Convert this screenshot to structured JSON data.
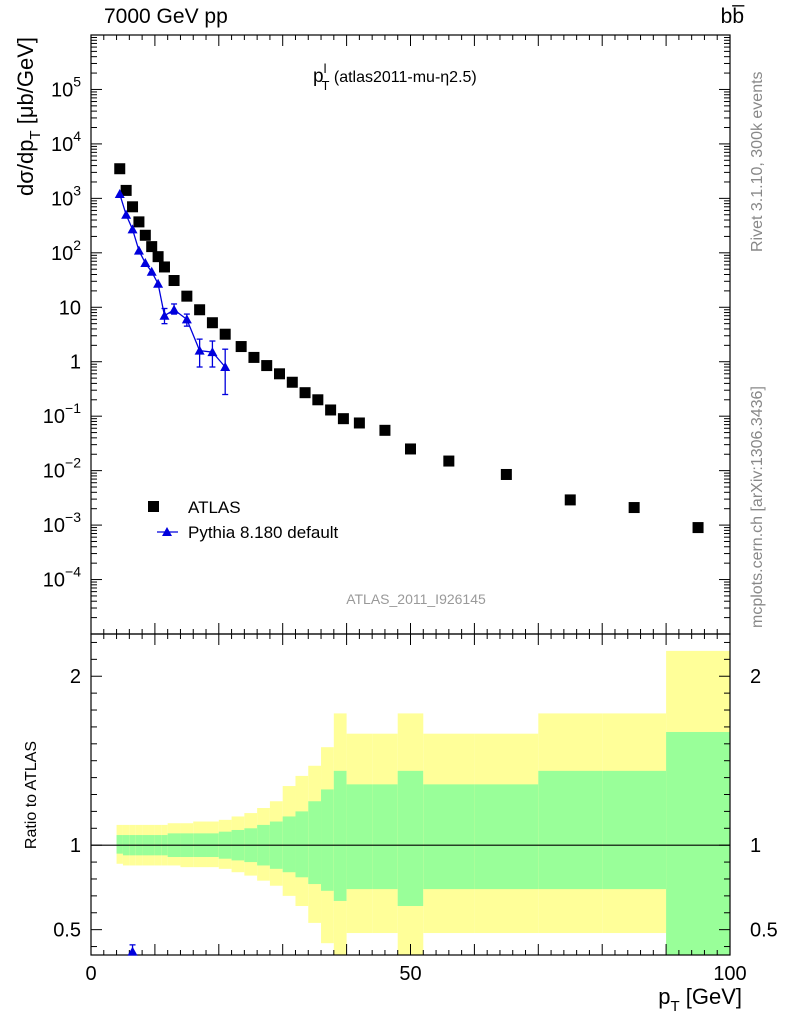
{
  "header": {
    "left": "7000 GeV pp",
    "right": "bb̅"
  },
  "side_labels": {
    "rivet": "Rivet 3.1.10,  300k events",
    "source": "mcplots.cern.ch [arXiv:1306.3436]"
  },
  "chart_data": {
    "type": "scatter",
    "title": "p_T^l (atlas2011-mu-η2.5)",
    "title_parts": {
      "main": "p",
      "sup": "l",
      "sub": "T",
      "rest": "(atlas2011-mu-η2.5)"
    },
    "watermark": "ATLAS_2011_I926145",
    "xlabel": "p_T [GeV]",
    "xlabel_parts": {
      "main": "p",
      "sub": "T",
      "rest": " [GeV]"
    },
    "ylabel": "dσ/dp_T [μb/GeV]",
    "ylabel_parts": {
      "pre": "dσ/dp",
      "sub": "T",
      "post": " [μb/GeV]"
    },
    "ratio_ylabel": "Ratio to ATLAS",
    "xlim": [
      0,
      100
    ],
    "ylim": [
      1e-05,
      1000000.0
    ],
    "yscale": "log",
    "x_ticks": [
      {
        "value": 0,
        "label": "0"
      },
      {
        "value": 50,
        "label": "50"
      },
      {
        "value": 100,
        "label": "100"
      }
    ],
    "y_ticks": [
      {
        "value": 0.0001,
        "base": "10",
        "exp": "−4"
      },
      {
        "value": 0.001,
        "base": "10",
        "exp": "−3"
      },
      {
        "value": 0.01,
        "base": "10",
        "exp": "−2"
      },
      {
        "value": 0.1,
        "base": "10",
        "exp": "−1"
      },
      {
        "value": 1,
        "base": "1",
        "exp": ""
      },
      {
        "value": 10,
        "base": "10",
        "exp": ""
      },
      {
        "value": 100,
        "base": "10",
        "exp": "2"
      },
      {
        "value": 1000,
        "base": "10",
        "exp": "3"
      },
      {
        "value": 10000,
        "base": "10",
        "exp": "4"
      },
      {
        "value": 100000,
        "base": "10",
        "exp": "5"
      }
    ],
    "ratio_ylim": [
      0.35,
      2.25
    ],
    "ratio_ticks": [
      {
        "value": 0.5,
        "label": "0.5"
      },
      {
        "value": 1,
        "label": "1"
      },
      {
        "value": 2,
        "label": "2"
      }
    ],
    "legend": [
      {
        "label": "ATLAS",
        "marker": "square",
        "color": "#000000"
      },
      {
        "label": "Pythia 8.180 default",
        "marker": "triangle",
        "color": "#0000dd"
      }
    ],
    "series": [
      {
        "name": "ATLAS",
        "x": [
          4.5,
          5.5,
          6.5,
          7.5,
          8.5,
          9.5,
          10.5,
          11.5,
          13,
          15,
          17,
          19,
          21,
          23.5,
          25.5,
          27.5,
          29.5,
          31.5,
          33.5,
          35.5,
          37.5,
          39.5,
          42,
          46,
          50,
          56,
          65,
          75,
          85,
          95
        ],
        "y": [
          3500,
          1400,
          700,
          370,
          210,
          130,
          85,
          55,
          31,
          16,
          9,
          5.2,
          3.2,
          1.9,
          1.2,
          0.85,
          0.6,
          0.42,
          0.27,
          0.2,
          0.13,
          0.09,
          0.075,
          0.055,
          0.025,
          0.015,
          0.0085,
          0.0029,
          0.0021,
          0.0009
        ]
      },
      {
        "name": "Pythia 8.180 default",
        "x": [
          4.5,
          5.5,
          6.5,
          7.5,
          8.5,
          9.5,
          10.5,
          11.5,
          13,
          15,
          17,
          19,
          21
        ],
        "y": [
          1200,
          500,
          270,
          110,
          65,
          45,
          27,
          7,
          9,
          6,
          1.6,
          1.5,
          0.8
        ],
        "err_low": [
          null,
          null,
          null,
          null,
          null,
          null,
          null,
          5,
          7.5,
          4.5,
          0.8,
          0.8,
          0.25
        ],
        "err_high": [
          null,
          null,
          null,
          null,
          null,
          null,
          null,
          9.5,
          11.5,
          7.5,
          2.6,
          2.4,
          1.7
        ]
      }
    ],
    "ratio_markers": [
      {
        "x": 6.5,
        "y": 0.37,
        "err_low": 0.35,
        "err_high": 0.41
      }
    ],
    "bands": {
      "edges": [
        4,
        5,
        6,
        7,
        8,
        9,
        10,
        11,
        12,
        14,
        16,
        18,
        20,
        22,
        24,
        26,
        28,
        30,
        32,
        34,
        36,
        38,
        40,
        44,
        48,
        52,
        60,
        70,
        80,
        90,
        100
      ],
      "inner_low": [
        0.95,
        0.94,
        0.94,
        0.94,
        0.94,
        0.94,
        0.94,
        0.94,
        0.93,
        0.93,
        0.93,
        0.93,
        0.92,
        0.91,
        0.9,
        0.88,
        0.86,
        0.84,
        0.81,
        0.77,
        0.73,
        0.67,
        0.74,
        0.74,
        0.64,
        0.74,
        0.74,
        0.74,
        0.74,
        0.34
      ],
      "inner_high": [
        1.06,
        1.06,
        1.06,
        1.06,
        1.06,
        1.06,
        1.06,
        1.06,
        1.07,
        1.07,
        1.07,
        1.07,
        1.08,
        1.09,
        1.1,
        1.12,
        1.14,
        1.17,
        1.2,
        1.26,
        1.33,
        1.44,
        1.36,
        1.36,
        1.44,
        1.36,
        1.36,
        1.44,
        1.44,
        1.67
      ],
      "outer_low": [
        0.89,
        0.88,
        0.88,
        0.88,
        0.88,
        0.88,
        0.88,
        0.88,
        0.88,
        0.87,
        0.87,
        0.87,
        0.86,
        0.84,
        0.82,
        0.79,
        0.76,
        0.7,
        0.64,
        0.54,
        0.42,
        0.35,
        0.48,
        0.48,
        0.35,
        0.48,
        0.48,
        0.48,
        0.48,
        0.35
      ],
      "outer_high": [
        1.12,
        1.12,
        1.12,
        1.12,
        1.12,
        1.12,
        1.12,
        1.12,
        1.13,
        1.13,
        1.14,
        1.14,
        1.15,
        1.17,
        1.19,
        1.22,
        1.26,
        1.35,
        1.41,
        1.47,
        1.58,
        1.78,
        1.66,
        1.66,
        1.78,
        1.66,
        1.66,
        1.78,
        1.78,
        2.15
      ],
      "inner_color": "#99ff99",
      "outer_color": "#ffff99"
    }
  }
}
